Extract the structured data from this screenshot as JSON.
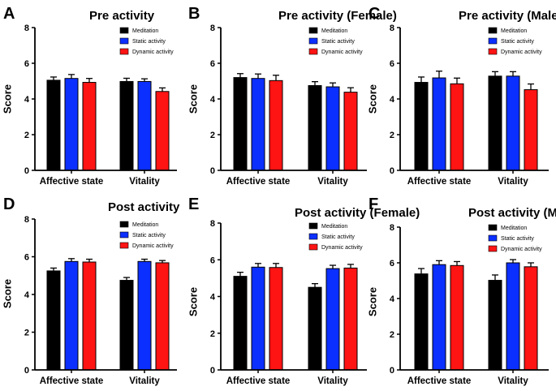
{
  "figure": {
    "legend": [
      "Meditation",
      "Static activity",
      "Dynamic activity"
    ],
    "colors": [
      "#000000",
      "#0b2fff",
      "#ff1414"
    ]
  },
  "chart_data": [
    {
      "panel": "A",
      "type": "bar",
      "title": "Pre activity",
      "ylabel": "Score",
      "xlabel": "",
      "categories": [
        "Affective state",
        "Vitality"
      ],
      "ylim": [
        0,
        8
      ],
      "yticks": [
        0,
        2,
        4,
        6,
        8
      ],
      "legend_position": "top-right",
      "series": [
        {
          "name": "Meditation",
          "values": [
            5.05,
            4.98
          ],
          "errors": [
            0.18,
            0.18
          ]
        },
        {
          "name": "Static activity",
          "values": [
            5.15,
            4.98
          ],
          "errors": [
            0.22,
            0.15
          ]
        },
        {
          "name": "Dynamic activity",
          "values": [
            4.93,
            4.42
          ],
          "errors": [
            0.22,
            0.2
          ]
        }
      ]
    },
    {
      "panel": "B",
      "type": "bar",
      "title": "Pre activity (Female)",
      "ylabel": "Score",
      "xlabel": "",
      "categories": [
        "Affective state",
        "Vitality"
      ],
      "ylim": [
        0,
        8
      ],
      "yticks": [
        0,
        2,
        4,
        6,
        8
      ],
      "legend_position": "top-right",
      "series": [
        {
          "name": "Meditation",
          "values": [
            5.2,
            4.75
          ],
          "errors": [
            0.22,
            0.22
          ]
        },
        {
          "name": "Static activity",
          "values": [
            5.15,
            4.68
          ],
          "errors": [
            0.25,
            0.22
          ]
        },
        {
          "name": "Dynamic activity",
          "values": [
            5.03,
            4.38
          ],
          "errors": [
            0.3,
            0.25
          ]
        }
      ]
    },
    {
      "panel": "C",
      "type": "bar",
      "title": "Pre activity (Male)",
      "ylabel": "Score",
      "xlabel": "",
      "categories": [
        "Affective state",
        "Vitality"
      ],
      "ylim": [
        0,
        8
      ],
      "yticks": [
        0,
        2,
        4,
        6,
        8
      ],
      "legend_position": "top-right",
      "series": [
        {
          "name": "Meditation",
          "values": [
            4.93,
            5.28
          ],
          "errors": [
            0.3,
            0.25
          ]
        },
        {
          "name": "Static activity",
          "values": [
            5.18,
            5.28
          ],
          "errors": [
            0.38,
            0.25
          ]
        },
        {
          "name": "Dynamic activity",
          "values": [
            4.85,
            4.52
          ],
          "errors": [
            0.32,
            0.32
          ]
        }
      ]
    },
    {
      "panel": "D",
      "type": "bar",
      "title": "Post activity",
      "ylabel": "Score",
      "xlabel": "",
      "categories": [
        "Affective state",
        "Vitality"
      ],
      "ylim": [
        0,
        8
      ],
      "yticks": [
        0,
        2,
        4,
        6,
        8
      ],
      "legend_position": "top-right",
      "series": [
        {
          "name": "Meditation",
          "values": [
            5.25,
            4.75
          ],
          "errors": [
            0.15,
            0.15
          ]
        },
        {
          "name": "Static activity",
          "values": [
            5.75,
            5.75
          ],
          "errors": [
            0.15,
            0.12
          ]
        },
        {
          "name": "Dynamic activity",
          "values": [
            5.72,
            5.68
          ],
          "errors": [
            0.15,
            0.12
          ]
        }
      ]
    },
    {
      "panel": "E",
      "type": "bar",
      "title": "Post activity (Female)",
      "ylabel": "Score",
      "xlabel": "",
      "categories": [
        "Affective state",
        "Vitality"
      ],
      "ylim": [
        0,
        8
      ],
      "yticks": [
        0,
        2,
        4,
        6,
        8
      ],
      "legend_position": "top-right",
      "series": [
        {
          "name": "Meditation",
          "values": [
            5.1,
            4.5
          ],
          "errors": [
            0.22,
            0.2
          ]
        },
        {
          "name": "Static activity",
          "values": [
            5.6,
            5.52
          ],
          "errors": [
            0.2,
            0.18
          ]
        },
        {
          "name": "Dynamic activity",
          "values": [
            5.58,
            5.55
          ],
          "errors": [
            0.22,
            0.2
          ]
        }
      ]
    },
    {
      "panel": "F",
      "type": "bar",
      "title": "Post activity (Male)",
      "ylabel": "Score",
      "xlabel": "",
      "categories": [
        "Affective state",
        "Vitality"
      ],
      "ylim": [
        0,
        8
      ],
      "yticks": [
        0,
        2,
        4,
        6,
        8
      ],
      "legend_position": "top-right",
      "series": [
        {
          "name": "Meditation",
          "values": [
            5.38,
            5.02
          ],
          "errors": [
            0.3,
            0.3
          ]
        },
        {
          "name": "Static activity",
          "values": [
            5.9,
            6.0
          ],
          "errors": [
            0.22,
            0.18
          ]
        },
        {
          "name": "Dynamic activity",
          "values": [
            5.85,
            5.78
          ],
          "errors": [
            0.22,
            0.22
          ]
        }
      ]
    }
  ]
}
